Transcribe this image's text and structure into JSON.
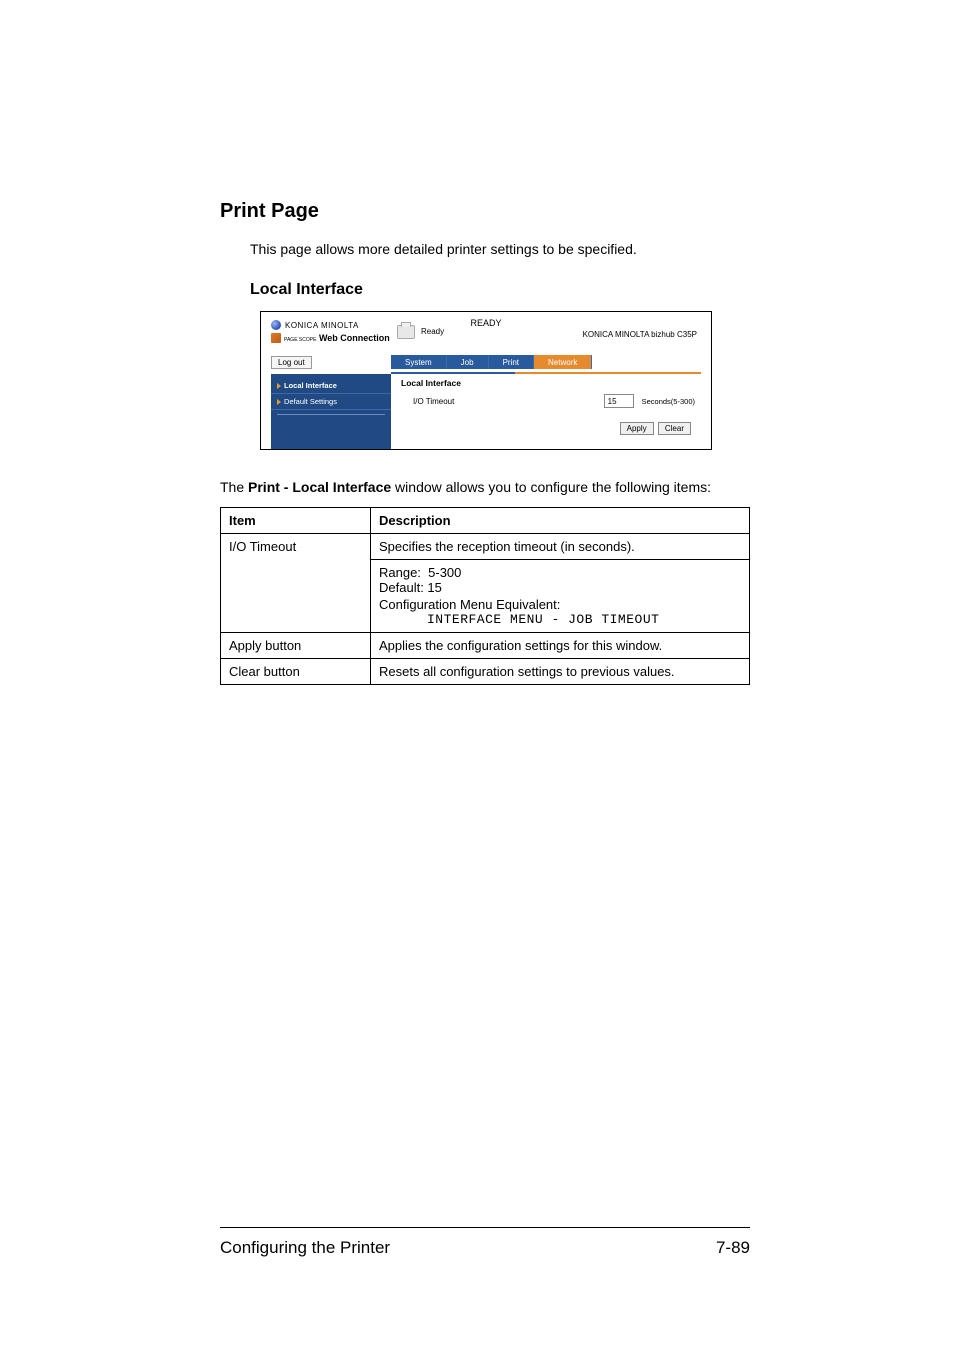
{
  "heading": "Print Page",
  "intro": "This page allows more detailed printer settings to be specified.",
  "subheading": "Local Interface",
  "screenshot": {
    "logo_text": "KONICA MINOLTA",
    "pws_prefix": "PAGE SCOPE",
    "pws_main": "Web Connection",
    "status_small": "Ready",
    "status_big": "READY",
    "model": "KONICA MINOLTA bizhub C35P",
    "logout": "Log out",
    "tabs": {
      "system": "System",
      "job": "Job",
      "print": "Print",
      "network": "Network"
    },
    "side": {
      "local_interface": "Local Interface",
      "default_settings": "Default Settings"
    },
    "main": {
      "title": "Local Interface",
      "row_label": "I/O Timeout",
      "row_value": "15",
      "row_unit": "Seconds(5-300)",
      "apply": "Apply",
      "clear": "Clear"
    }
  },
  "after_para_1": "The ",
  "after_para_bold": "Print - Local Interface",
  "after_para_2": " window allows you to configure the following items:",
  "table": {
    "head_item": "Item",
    "head_desc": "Description",
    "rows": {
      "io": {
        "item": "I/O Timeout",
        "line1": "Specifies the reception timeout (in seconds).",
        "line2": "Range:  5-300",
        "line3": "Default: 15",
        "line4": "Configuration Menu Equivalent:",
        "line5": "INTERFACE MENU - JOB TIMEOUT"
      },
      "apply": {
        "item": "Apply button",
        "desc": "Applies the configuration settings for this window."
      },
      "clear": {
        "item": "Clear button",
        "desc": "Resets all configuration settings to previous values."
      }
    }
  },
  "footer": {
    "left": "Configuring the Printer",
    "right": "7-89"
  }
}
